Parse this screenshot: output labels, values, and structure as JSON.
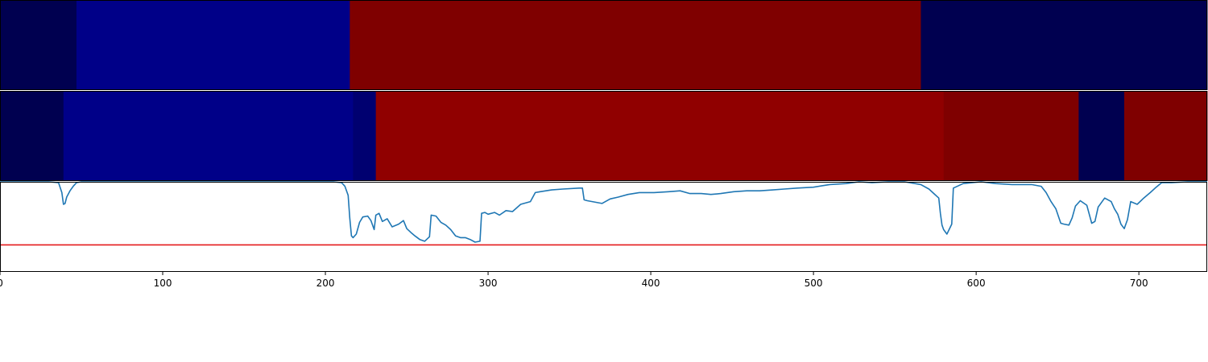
{
  "colors": {
    "dark_navy": "#000050",
    "blue": "#000088",
    "bright_red": "#900000",
    "dark_red": "#7f0000",
    "line": "#1f77b4",
    "threshold": "#e41a1c",
    "frame": "#000000"
  },
  "chart_data": [
    {
      "type": "heatmap",
      "xlim": [
        0,
        742
      ],
      "segments": [
        {
          "start": 0,
          "end": 47,
          "color": "#000050"
        },
        {
          "start": 47,
          "end": 215,
          "color": "#000088"
        },
        {
          "start": 215,
          "end": 566,
          "color": "#7f0000"
        },
        {
          "start": 566,
          "end": 742,
          "color": "#000050"
        }
      ]
    },
    {
      "type": "heatmap",
      "xlim": [
        0,
        742
      ],
      "segments": [
        {
          "start": 0,
          "end": 39,
          "color": "#000050"
        },
        {
          "start": 39,
          "end": 217,
          "color": "#000088"
        },
        {
          "start": 217,
          "end": 231,
          "color": "#000070"
        },
        {
          "start": 231,
          "end": 580,
          "color": "#900000"
        },
        {
          "start": 580,
          "end": 663,
          "color": "#7f0000"
        },
        {
          "start": 663,
          "end": 691,
          "color": "#000050"
        },
        {
          "start": 691,
          "end": 742,
          "color": "#7f0000"
        }
      ]
    },
    {
      "type": "line",
      "xlim": [
        0,
        742
      ],
      "ylim": [
        0,
        1
      ],
      "xticks": [
        0,
        100,
        200,
        300,
        400,
        500,
        600,
        700
      ],
      "xtick_labels": [
        "0",
        "100",
        "200",
        "300",
        "400",
        "500",
        "600",
        "700"
      ],
      "threshold": 0.3,
      "series": [
        {
          "points": [
            [
              0,
              1.0
            ],
            [
              30,
              1.0
            ],
            [
              36,
              0.99
            ],
            [
              38,
              0.88
            ],
            [
              39,
              0.75
            ],
            [
              40,
              0.76
            ],
            [
              41,
              0.83
            ],
            [
              43,
              0.9
            ],
            [
              45,
              0.95
            ],
            [
              47,
              0.99
            ],
            [
              50,
              1.0
            ],
            [
              100,
              1.0
            ],
            [
              205,
              1.0
            ],
            [
              210,
              0.99
            ],
            [
              212,
              0.95
            ],
            [
              214,
              0.85
            ],
            [
              215,
              0.6
            ],
            [
              216,
              0.4
            ],
            [
              217,
              0.38
            ],
            [
              219,
              0.42
            ],
            [
              221,
              0.55
            ],
            [
              223,
              0.61
            ],
            [
              226,
              0.62
            ],
            [
              228,
              0.57
            ],
            [
              230,
              0.47
            ],
            [
              231,
              0.63
            ],
            [
              233,
              0.65
            ],
            [
              235,
              0.56
            ],
            [
              238,
              0.59
            ],
            [
              241,
              0.5
            ],
            [
              245,
              0.53
            ],
            [
              248,
              0.57
            ],
            [
              250,
              0.48
            ],
            [
              253,
              0.43
            ],
            [
              255,
              0.4
            ],
            [
              258,
              0.36
            ],
            [
              261,
              0.34
            ],
            [
              264,
              0.39
            ],
            [
              265,
              0.63
            ],
            [
              268,
              0.62
            ],
            [
              271,
              0.55
            ],
            [
              274,
              0.52
            ],
            [
              277,
              0.47
            ],
            [
              280,
              0.4
            ],
            [
              283,
              0.38
            ],
            [
              286,
              0.38
            ],
            [
              289,
              0.36
            ],
            [
              292,
              0.33
            ],
            [
              295,
              0.34
            ],
            [
              296,
              0.65
            ],
            [
              298,
              0.66
            ],
            [
              300,
              0.64
            ],
            [
              304,
              0.66
            ],
            [
              307,
              0.63
            ],
            [
              311,
              0.68
            ],
            [
              315,
              0.67
            ],
            [
              320,
              0.75
            ],
            [
              326,
              0.78
            ],
            [
              329,
              0.88
            ],
            [
              332,
              0.89
            ],
            [
              339,
              0.91
            ],
            [
              346,
              0.92
            ],
            [
              356,
              0.93
            ],
            [
              358,
              0.93
            ],
            [
              359,
              0.8
            ],
            [
              361,
              0.79
            ],
            [
              364,
              0.78
            ],
            [
              370,
              0.76
            ],
            [
              375,
              0.81
            ],
            [
              380,
              0.83
            ],
            [
              386,
              0.86
            ],
            [
              393,
              0.88
            ],
            [
              402,
              0.88
            ],
            [
              411,
              0.89
            ],
            [
              418,
              0.9
            ],
            [
              424,
              0.87
            ],
            [
              431,
              0.87
            ],
            [
              437,
              0.86
            ],
            [
              443,
              0.87
            ],
            [
              451,
              0.89
            ],
            [
              459,
              0.9
            ],
            [
              467,
              0.9
            ],
            [
              475,
              0.91
            ],
            [
              482,
              0.92
            ],
            [
              490,
              0.93
            ],
            [
              500,
              0.94
            ],
            [
              510,
              0.97
            ],
            [
              520,
              0.98
            ],
            [
              528,
              1.0
            ],
            [
              536,
              0.99
            ],
            [
              546,
              1.0
            ],
            [
              556,
              1.0
            ],
            [
              566,
              0.97
            ],
            [
              571,
              0.92
            ],
            [
              574,
              0.87
            ],
            [
              577,
              0.82
            ],
            [
              578,
              0.65
            ],
            [
              579,
              0.52
            ],
            [
              580,
              0.47
            ],
            [
              582,
              0.42
            ],
            [
              585,
              0.53
            ],
            [
              586,
              0.93
            ],
            [
              592,
              0.98
            ],
            [
              603,
              1.0
            ],
            [
              612,
              0.98
            ],
            [
              622,
              0.97
            ],
            [
              634,
              0.97
            ],
            [
              640,
              0.95
            ],
            [
              643,
              0.88
            ],
            [
              646,
              0.78
            ],
            [
              649,
              0.7
            ],
            [
              652,
              0.54
            ],
            [
              654,
              0.53
            ],
            [
              657,
              0.52
            ],
            [
              659,
              0.6
            ],
            [
              661,
              0.73
            ],
            [
              664,
              0.79
            ],
            [
              668,
              0.74
            ],
            [
              671,
              0.54
            ],
            [
              673,
              0.56
            ],
            [
              675,
              0.72
            ],
            [
              679,
              0.82
            ],
            [
              683,
              0.78
            ],
            [
              685,
              0.7
            ],
            [
              687,
              0.64
            ],
            [
              689,
              0.53
            ],
            [
              691,
              0.48
            ],
            [
              693,
              0.58
            ],
            [
              695,
              0.78
            ],
            [
              699,
              0.75
            ],
            [
              703,
              0.82
            ],
            [
              707,
              0.88
            ],
            [
              710,
              0.93
            ],
            [
              714,
              0.99
            ],
            [
              720,
              0.99
            ],
            [
              730,
              1.0
            ],
            [
              742,
              1.0
            ]
          ]
        }
      ]
    }
  ]
}
